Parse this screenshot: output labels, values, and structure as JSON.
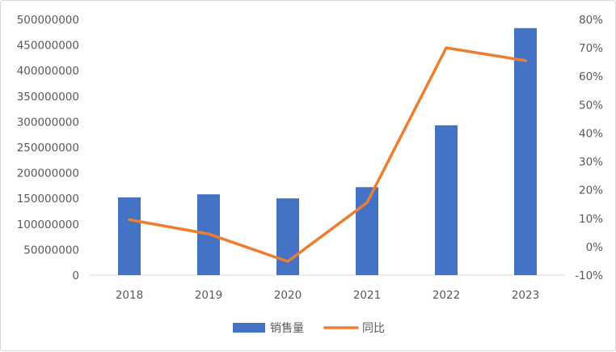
{
  "chart_data": {
    "type": "bar+line",
    "title": "",
    "categories": [
      "2018",
      "2019",
      "2020",
      "2021",
      "2022",
      "2023"
    ],
    "series": [
      {
        "name": "销售量",
        "type": "bar",
        "axis": "left",
        "color": "#4472c4",
        "values": [
          152000000,
          158000000,
          150000000,
          172000000,
          293000000,
          483000000
        ]
      },
      {
        "name": "同比",
        "type": "line",
        "axis": "right",
        "color": "#ed7d31",
        "values": [
          0.095,
          0.045,
          -0.052,
          0.155,
          0.7,
          0.655
        ]
      }
    ],
    "y_left": {
      "min": 0,
      "max": 500000000,
      "step": 50000000,
      "tick_labels": [
        "0",
        "50000000",
        "100000000",
        "150000000",
        "200000000",
        "250000000",
        "300000000",
        "350000000",
        "400000000",
        "450000000",
        "500000000"
      ]
    },
    "y_right": {
      "min": -0.1,
      "max": 0.8,
      "step": 0.1,
      "tick_labels": [
        "-10%",
        "0%",
        "10%",
        "20%",
        "30%",
        "40%",
        "50%",
        "60%",
        "70%",
        "80%"
      ]
    },
    "grid": false,
    "legend": "bottom"
  }
}
